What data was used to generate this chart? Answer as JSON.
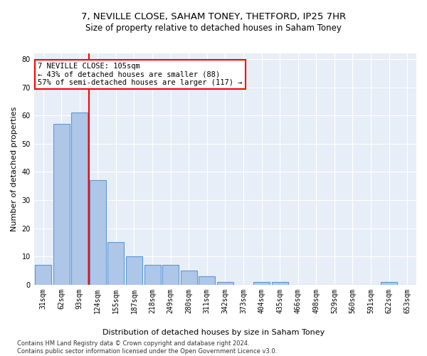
{
  "title_line1": "7, NEVILLE CLOSE, SAHAM TONEY, THETFORD, IP25 7HR",
  "title_line2": "Size of property relative to detached houses in Saham Toney",
  "xlabel": "Distribution of detached houses by size in Saham Toney",
  "ylabel": "Number of detached properties",
  "footnote": "Contains HM Land Registry data © Crown copyright and database right 2024.\nContains public sector information licensed under the Open Government Licence v3.0.",
  "bar_labels": [
    "31sqm",
    "62sqm",
    "93sqm",
    "124sqm",
    "155sqm",
    "187sqm",
    "218sqm",
    "249sqm",
    "280sqm",
    "311sqm",
    "342sqm",
    "373sqm",
    "404sqm",
    "435sqm",
    "466sqm",
    "498sqm",
    "529sqm",
    "560sqm",
    "591sqm",
    "622sqm",
    "653sqm"
  ],
  "bar_values": [
    7,
    57,
    61,
    37,
    15,
    10,
    7,
    7,
    5,
    3,
    1,
    0,
    1,
    1,
    0,
    0,
    0,
    0,
    0,
    1,
    0
  ],
  "bar_color": "#aec6e8",
  "bar_edge_color": "#5b9bd5",
  "vline_color": "red",
  "vline_x_index": 2.5,
  "annotation_line1": "7 NEVILLE CLOSE: 105sqm",
  "annotation_line2": "← 43% of detached houses are smaller (88)",
  "annotation_line3": "57% of semi-detached houses are larger (117) →",
  "annotation_box_color": "white",
  "annotation_box_edge": "red",
  "ylim": [
    0,
    82
  ],
  "yticks": [
    0,
    10,
    20,
    30,
    40,
    50,
    60,
    70,
    80
  ],
  "bg_color": "#e8eef7",
  "grid_color": "white",
  "title_fontsize": 9.5,
  "subtitle_fontsize": 8.5,
  "axis_label_fontsize": 8,
  "tick_fontsize": 7,
  "annotation_fontsize": 7.5
}
